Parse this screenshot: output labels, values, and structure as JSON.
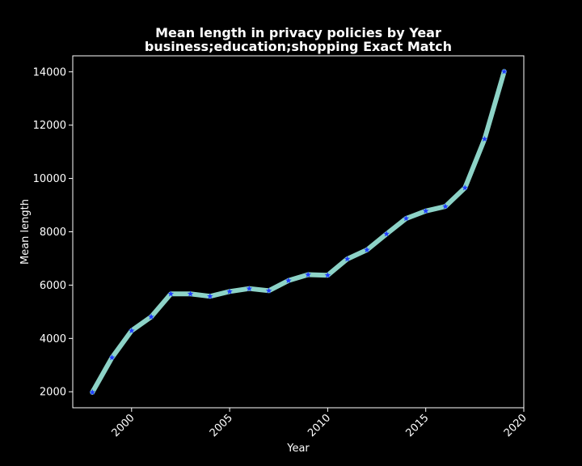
{
  "chart_data": {
    "type": "line",
    "title": "Mean length in privacy policies by Year",
    "subtitle": "business;education;shopping Exact Match",
    "xlabel": "Year",
    "ylabel": "Mean length",
    "xlim": [
      1997,
      2020
    ],
    "ylim": [
      1400,
      14600
    ],
    "xticks": [
      2000,
      2005,
      2010,
      2015,
      2020
    ],
    "yticks": [
      2000,
      4000,
      6000,
      8000,
      10000,
      12000,
      14000
    ],
    "grid": false,
    "legend": "none",
    "colors": {
      "background": "#000000",
      "line": "#8dd3c7",
      "marker": "#1f3cff",
      "text": "#ffffff"
    },
    "series": [
      {
        "x": [
          1998,
          1999,
          2000,
          2001,
          2002,
          2003,
          2004,
          2005,
          2006,
          2007,
          2008,
          2009,
          2010,
          2011,
          2012,
          2013,
          2014,
          2015,
          2016,
          2017,
          2018,
          2019
        ],
        "values": [
          1980,
          3280,
          4290,
          4810,
          5670,
          5670,
          5580,
          5760,
          5870,
          5790,
          6170,
          6390,
          6370,
          6980,
          7320,
          7920,
          8500,
          8780,
          8950,
          9650,
          11480,
          14010
        ]
      }
    ]
  }
}
